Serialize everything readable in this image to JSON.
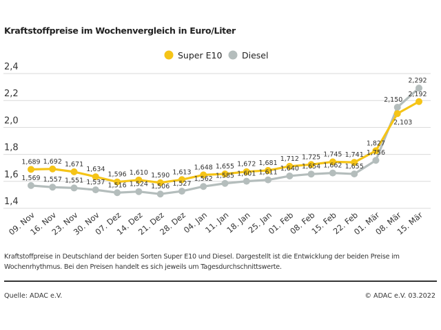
{
  "chart_data": {
    "type": "line",
    "title": "Kraftstoffpreise im Wochenvergleich in Euro/Liter",
    "categories": [
      "09. Nov",
      "16. Nov",
      "23. Nov",
      "30. Nov",
      "07. Dez",
      "14. Dez",
      "21. Dez",
      "28. Dez",
      "04. Jan",
      "11. Jan",
      "18. Jan",
      "25. Jan",
      "01. Feb",
      "08. Feb",
      "15. Feb",
      "22. Feb",
      "01. Mär",
      "08. Mär",
      "15. Mär"
    ],
    "series": [
      {
        "name": "Super E10",
        "color": "#f5c417",
        "values": [
          1.689,
          1.692,
          1.671,
          1.634,
          1.596,
          1.61,
          1.59,
          1.613,
          1.648,
          1.655,
          1.672,
          1.681,
          1.712,
          1.725,
          1.745,
          1.741,
          1.827,
          2.103,
          2.192
        ]
      },
      {
        "name": "Diesel",
        "color": "#b4bdbc",
        "values": [
          1.569,
          1.557,
          1.551,
          1.537,
          1.516,
          1.524,
          1.506,
          1.527,
          1.562,
          1.585,
          1.601,
          1.611,
          1.64,
          1.654,
          1.662,
          1.655,
          1.756,
          2.15,
          2.292
        ]
      }
    ],
    "ylim": [
      1.4,
      2.4
    ],
    "yticks": [
      "1,4",
      "1,6",
      "1,8",
      "2,0",
      "2,2",
      "2,4"
    ],
    "grid": true,
    "legend": "top-center",
    "xlabel": "",
    "ylabel": ""
  },
  "description": "Kraftstoffpreise in Deutschland der beiden Sorten Super E10 und Diesel. Dargestellt ist die Entwicklung der beiden Preise im Wochenrhythmus. Bei den Preisen handelt es sich jeweils um Tagesdurchschnittswerte.",
  "footer": {
    "source": "Quelle: ADAC e.V.",
    "copyright": "© ADAC e.V. 03.2022"
  }
}
